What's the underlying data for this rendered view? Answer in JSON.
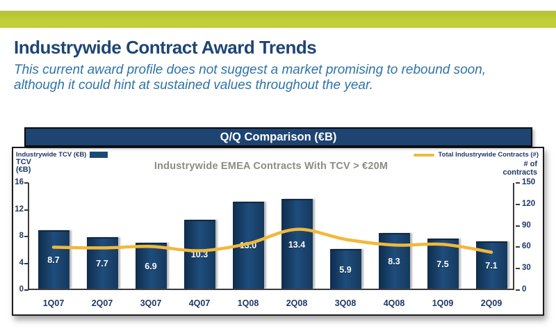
{
  "slide": {
    "title": "Industrywide Contract Award Trends",
    "subtitle_lines": [
      "This current award profile does not suggest a market promising to rebound soon,",
      "although it could hint at sustained values throughout the year."
    ]
  },
  "chart_header": {
    "title": "Q/Q Comparison (€B)"
  },
  "legend": {
    "bars": "Industrywide TCV (€B)",
    "line": "Total Industrywide Contracts (#)"
  },
  "axis_titles": {
    "left": [
      "TCV",
      "(€B)"
    ],
    "right": [
      "# of",
      "contracts"
    ]
  },
  "chart_data": {
    "type": "bar",
    "title": "Industrywide EMEA Contracts With TCV > €20M",
    "categories": [
      "1Q07",
      "2Q07",
      "3Q07",
      "4Q07",
      "1Q08",
      "2Q08",
      "3Q08",
      "4Q08",
      "1Q09",
      "2Q09"
    ],
    "series": [
      {
        "name": "Industrywide TCV (€B)",
        "type": "bar",
        "axis": "left",
        "values": [
          8.7,
          7.7,
          6.9,
          10.3,
          13.0,
          13.4,
          5.9,
          8.3,
          7.5,
          7.1
        ],
        "labels": [
          "8.7",
          "7.7",
          "6.9",
          "10.3",
          "13.0",
          "13.4",
          "5.9",
          "8.3",
          "7.5",
          "7.1"
        ],
        "color": "#1b4a77"
      },
      {
        "name": "Total Industrywide Contracts (#)",
        "type": "line",
        "axis": "right",
        "values": [
          60,
          59,
          61,
          55,
          65,
          85,
          71,
          63,
          64,
          53
        ],
        "color": "#f2b83b"
      }
    ],
    "left_axis": {
      "range": [
        0,
        16
      ],
      "ticks": [
        16,
        12,
        8,
        4,
        0
      ]
    },
    "right_axis": {
      "range": [
        0,
        150
      ],
      "ticks": [
        150,
        120,
        90,
        60,
        30,
        0
      ]
    },
    "grid": false,
    "legend_position": "top"
  },
  "colors": {
    "accent_green": "#bcc933",
    "title_navy": "#1e4575",
    "subtitle_blue": "#2e73a8",
    "header_bar_bg": "#1e4471",
    "bar_navy": "#1b4a77",
    "line_amber": "#f2b83b",
    "axis_text": "#1f3864",
    "chart_title_gray": "#8c8c82"
  }
}
